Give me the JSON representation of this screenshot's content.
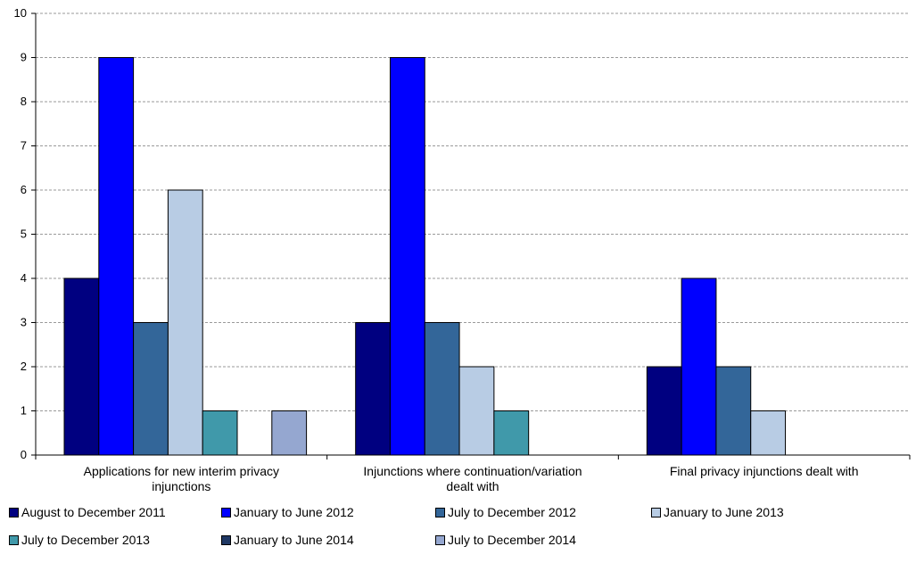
{
  "chart_data": {
    "type": "bar",
    "title": "",
    "xlabel": "",
    "ylabel": "",
    "ylim": [
      0,
      10
    ],
    "yticks": [
      0,
      1,
      2,
      3,
      4,
      5,
      6,
      7,
      8,
      9,
      10
    ],
    "grid": true,
    "legend_position": "bottom",
    "categories": [
      [
        "Applications for new interim privacy",
        "injunctions"
      ],
      [
        "Injunctions where continuation/variation",
        "dealt with"
      ],
      [
        "Final privacy injunctions dealt with"
      ]
    ],
    "series": [
      {
        "name": "August to December 2011",
        "color": "#000080",
        "values": [
          4,
          3,
          2
        ]
      },
      {
        "name": "January to June 2012",
        "color": "#0000ff",
        "values": [
          9,
          9,
          4
        ]
      },
      {
        "name": "July to December 2012",
        "color": "#336699",
        "values": [
          3,
          3,
          2
        ]
      },
      {
        "name": "January to June 2013",
        "color": "#b8cce4",
        "values": [
          6,
          2,
          1
        ]
      },
      {
        "name": "July to December 2013",
        "color": "#4099aa",
        "values": [
          1,
          1,
          0
        ]
      },
      {
        "name": "January to June 2014",
        "color": "#1f3864",
        "values": [
          0,
          0,
          0
        ]
      },
      {
        "name": "July to December 2014",
        "color": "#95a7d0",
        "values": [
          1,
          0,
          0
        ]
      }
    ]
  }
}
